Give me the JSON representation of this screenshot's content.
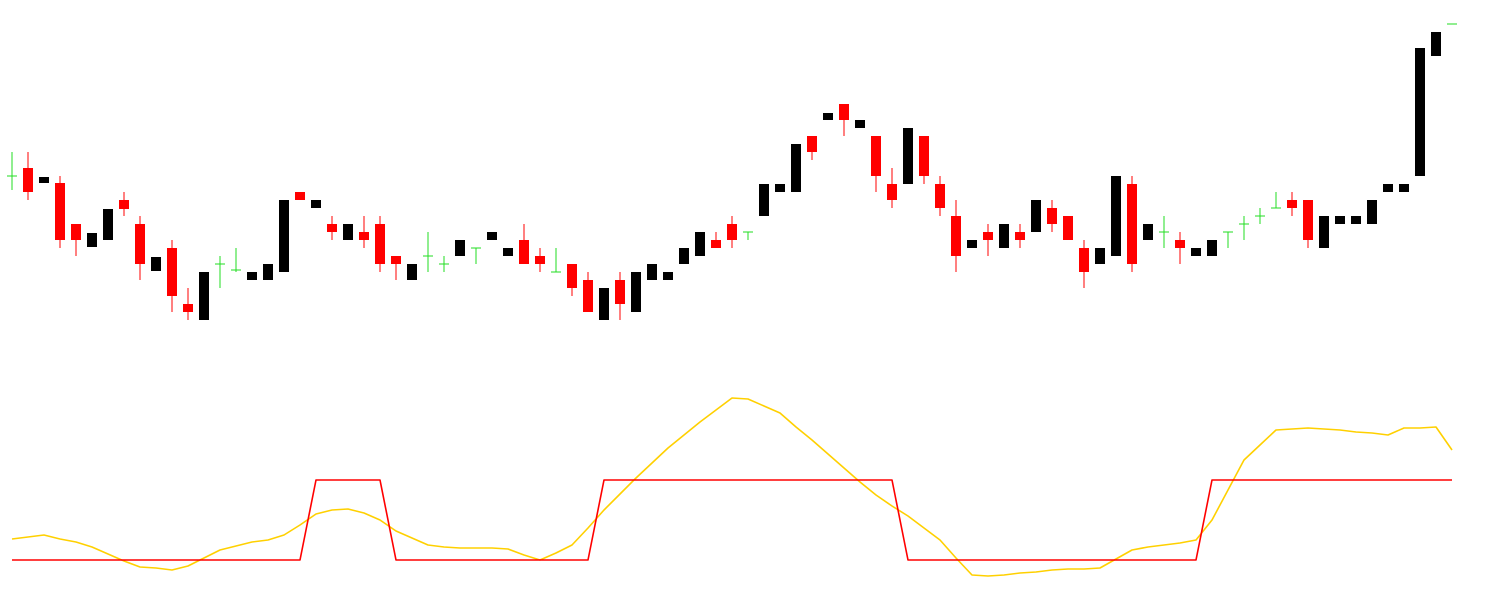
{
  "chart_data": [
    {
      "type": "candlestick",
      "ylim": [
        280,
        620
      ],
      "colors": {
        "up": "#000000",
        "down": "#ff0000",
        "doji": "#22dd22"
      },
      "open": [
        444,
        452,
        437,
        437,
        396,
        373,
        380,
        420,
        396,
        349,
        372,
        316,
        300,
        356,
        350,
        340,
        340,
        348,
        428,
        412,
        396,
        380,
        388,
        396,
        364,
        340,
        364,
        356,
        364,
        372,
        380,
        364,
        380,
        364,
        348,
        356,
        340,
        300,
        340,
        308,
        340,
        340,
        356,
        364,
        380,
        396,
        388,
        404,
        428,
        428,
        484,
        500,
        516,
        492,
        484,
        436,
        436,
        484,
        436,
        404,
        372,
        388,
        372,
        388,
        388,
        412,
        404,
        372,
        356,
        364,
        436,
        380,
        388,
        380,
        364,
        364,
        388,
        396,
        404,
        412,
        420,
        420,
        372,
        396,
        396,
        396,
        428,
        428,
        444,
        564,
        596
      ],
      "high": [
        468,
        468,
        443,
        444,
        396,
        387,
        411,
        428,
        404,
        363,
        380,
        332,
        348,
        364,
        372,
        348,
        356,
        420,
        428,
        420,
        404,
        396,
        404,
        404,
        364,
        356,
        388,
        364,
        380,
        372,
        388,
        372,
        396,
        372,
        372,
        356,
        348,
        332,
        348,
        348,
        356,
        348,
        372,
        388,
        388,
        404,
        388,
        436,
        436,
        476,
        484,
        507,
        516,
        500,
        484,
        452,
        492,
        484,
        444,
        420,
        380,
        396,
        396,
        396,
        420,
        420,
        404,
        380,
        372,
        444,
        444,
        396,
        404,
        388,
        372,
        380,
        388,
        404,
        412,
        428,
        428,
        420,
        404,
        404,
        404,
        420,
        436,
        436,
        572,
        588,
        596
      ],
      "low": [
        430,
        420,
        437,
        372,
        364,
        373,
        380,
        404,
        340,
        349,
        308,
        300,
        300,
        332,
        348,
        340,
        340,
        348,
        420,
        412,
        380,
        380,
        372,
        348,
        340,
        340,
        348,
        348,
        364,
        356,
        380,
        364,
        356,
        348,
        348,
        324,
        308,
        300,
        300,
        308,
        340,
        340,
        356,
        364,
        372,
        372,
        380,
        404,
        428,
        428,
        460,
        500,
        484,
        492,
        428,
        412,
        436,
        436,
        404,
        348,
        372,
        364,
        372,
        372,
        388,
        388,
        380,
        332,
        356,
        364,
        348,
        380,
        372,
        356,
        364,
        364,
        372,
        380,
        396,
        412,
        404,
        372,
        372,
        396,
        396,
        396,
        428,
        428,
        444,
        564,
        596
      ],
      "close": [
        444,
        428,
        443,
        380,
        380,
        387,
        411,
        411,
        356,
        363,
        324,
        308,
        348,
        356,
        350,
        348,
        356,
        420,
        420,
        420,
        388,
        396,
        380,
        356,
        356,
        356,
        364,
        356,
        380,
        372,
        388,
        372,
        356,
        356,
        348,
        332,
        308,
        332,
        316,
        348,
        356,
        348,
        372,
        388,
        372,
        380,
        388,
        436,
        436,
        476,
        468,
        507,
        500,
        500,
        444,
        420,
        492,
        444,
        412,
        364,
        380,
        380,
        396,
        380,
        420,
        396,
        380,
        348,
        372,
        444,
        356,
        396,
        388,
        372,
        372,
        380,
        388,
        396,
        404,
        412,
        412,
        380,
        404,
        404,
        404,
        420,
        436,
        436,
        572,
        588,
        596
      ]
    },
    {
      "type": "line",
      "ylim": [
        0,
        220
      ],
      "series": [
        {
          "color": "#ffd000",
          "values": [
            61,
            63,
            65,
            61,
            58,
            53,
            46,
            39,
            33,
            32,
            30,
            34,
            42,
            50,
            54,
            58,
            60,
            65,
            75,
            86,
            90,
            91,
            87,
            80,
            69,
            62,
            55,
            53,
            52,
            52,
            52,
            51,
            45,
            40,
            47,
            55,
            72,
            90,
            106,
            122,
            137,
            152,
            165,
            178,
            190,
            202,
            201,
            194,
            187,
            173,
            160,
            146,
            132,
            118,
            105,
            94,
            84,
            72,
            60,
            42,
            25,
            24,
            25,
            27,
            28,
            30,
            31,
            31,
            32,
            41,
            50,
            53,
            55,
            57,
            60,
            80,
            110,
            140,
            155,
            170,
            171,
            172,
            171,
            170,
            168,
            167,
            165,
            172,
            172,
            173,
            150
          ]
        },
        {
          "color": "#ff0000",
          "values": [
            40,
            40,
            40,
            40,
            40,
            40,
            40,
            40,
            40,
            40,
            40,
            40,
            40,
            40,
            40,
            40,
            40,
            40,
            40,
            120,
            120,
            120,
            120,
            120,
            40,
            40,
            40,
            40,
            40,
            40,
            40,
            40,
            40,
            40,
            40,
            40,
            40,
            120,
            120,
            120,
            120,
            120,
            120,
            120,
            120,
            120,
            120,
            120,
            120,
            120,
            120,
            120,
            120,
            120,
            120,
            120,
            40,
            40,
            40,
            40,
            40,
            40,
            40,
            40,
            40,
            40,
            40,
            40,
            40,
            40,
            40,
            40,
            40,
            40,
            40,
            120,
            120,
            120,
            120,
            120,
            120,
            120,
            120,
            120,
            120,
            120,
            120,
            120,
            120,
            120,
            120
          ]
        }
      ]
    }
  ]
}
